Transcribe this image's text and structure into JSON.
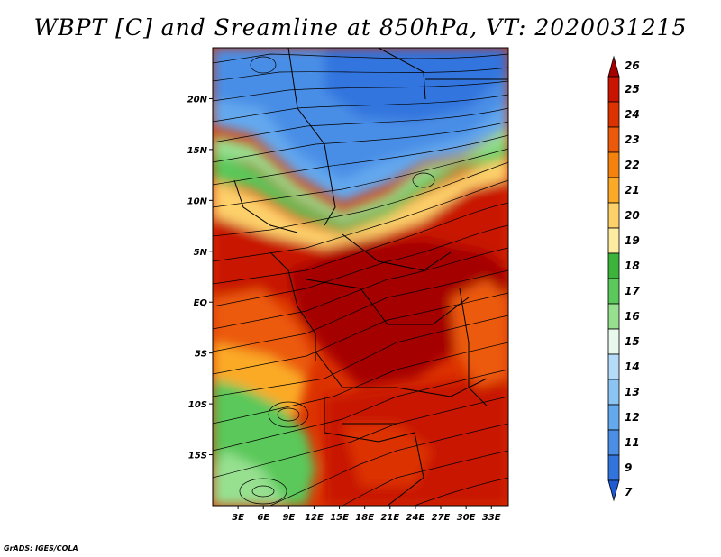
{
  "title": "WBPT [C] and Sreamline at 850hPa, VT: 2020031215",
  "credit": "GrADS: IGES/COLA",
  "map": {
    "lon_range": [
      0,
      35
    ],
    "lat_range": [
      -20,
      25
    ],
    "lat_ticks": [
      {
        "label": "20N",
        "lat": 20
      },
      {
        "label": "15N",
        "lat": 15
      },
      {
        "label": "10N",
        "lat": 10
      },
      {
        "label": "5N",
        "lat": 5
      },
      {
        "label": "EQ",
        "lat": 0
      },
      {
        "label": "5S",
        "lat": -5
      },
      {
        "label": "10S",
        "lat": -10
      },
      {
        "label": "15S",
        "lat": -15
      }
    ],
    "lon_ticks": [
      {
        "label": "3E",
        "lon": 3
      },
      {
        "label": "6E",
        "lon": 6
      },
      {
        "label": "9E",
        "lon": 9
      },
      {
        "label": "12E",
        "lon": 12
      },
      {
        "label": "15E",
        "lon": 15
      },
      {
        "label": "18E",
        "lon": 18
      },
      {
        "label": "21E",
        "lon": 21
      },
      {
        "label": "24E",
        "lon": 24
      },
      {
        "label": "27E",
        "lon": 27
      },
      {
        "label": "30E",
        "lon": 30
      },
      {
        "label": "33E",
        "lon": 33
      }
    ]
  },
  "colorbar": {
    "levels": [
      "26",
      "25",
      "24",
      "23",
      "22",
      "21",
      "20",
      "19",
      "18",
      "17",
      "16",
      "15",
      "14",
      "13",
      "12",
      "11",
      "9",
      "7"
    ],
    "colors": [
      "#a50000",
      "#c81400",
      "#dc3200",
      "#eb5a0a",
      "#f5820f",
      "#fbaa28",
      "#fdd06a",
      "#fdeca0",
      "#3cb43c",
      "#5ac85a",
      "#96e090",
      "#e8f8ec",
      "#b4dcf8",
      "#8cc4f4",
      "#64a8ee",
      "#4a8ee6",
      "#3274de",
      "#1e5ad2"
    ]
  }
}
